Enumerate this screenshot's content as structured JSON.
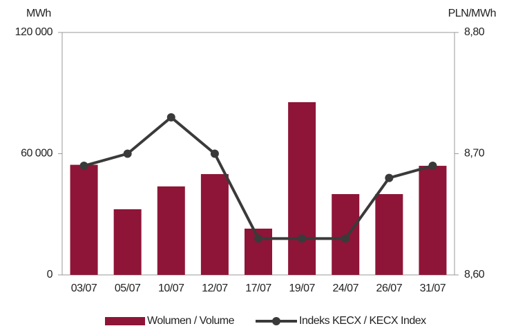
{
  "chart_data": {
    "type": "bar_line",
    "y_label": "MWh",
    "y2_label": "PLN/MWh",
    "categories": [
      "03/07",
      "05/07",
      "10/07",
      "12/07",
      "17/07",
      "19/07",
      "24/07",
      "26/07",
      "31/07"
    ],
    "series": [
      {
        "name": "Wolumen / Volume",
        "type": "bar",
        "color": "#8e1538",
        "values": [
          54500,
          32500,
          43800,
          49900,
          22900,
          85500,
          40000,
          40000,
          54000
        ]
      },
      {
        "name": "Indeks KECX / KECX Index",
        "type": "line",
        "axis": "y2",
        "color": "#3a3a3a",
        "values": [
          8.69,
          8.7,
          8.73,
          8.7,
          8.63,
          8.63,
          8.63,
          8.68,
          8.69
        ]
      }
    ],
    "ylim": [
      0,
      120000
    ],
    "yticks": [
      0,
      {
        "value": 60000,
        "label": "60 000"
      },
      {
        "value": 120000,
        "label": "120 000"
      }
    ],
    "y2lim": [
      8.6,
      8.8
    ],
    "y2ticks": [
      {
        "value": 8.6,
        "label": "8,60"
      },
      {
        "value": 8.7,
        "label": "8,70"
      },
      {
        "value": 8.8,
        "label": "8,80"
      }
    ],
    "legend": "bottom"
  }
}
